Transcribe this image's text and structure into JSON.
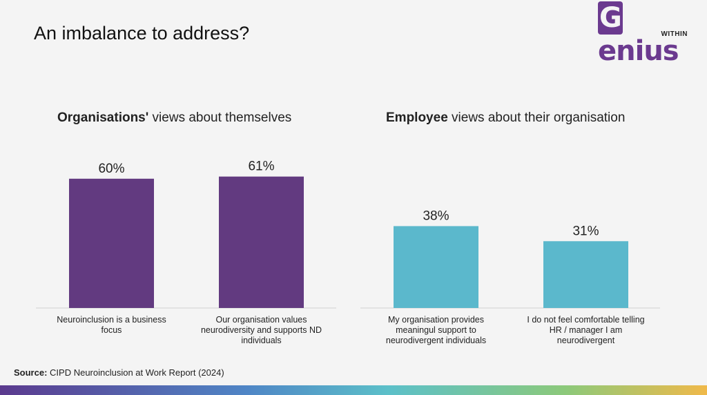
{
  "slide": {
    "title": "An imbalance to address?",
    "logo": {
      "word": "Genius",
      "sub": "WITHIN"
    },
    "source_label": "Source:",
    "source_text": "CIPD Neuroinclusion at Work Report (2024)"
  },
  "colors": {
    "left_bars": "#623a80",
    "right_bars": "#5bb8cc",
    "brand": "#6b3a8f"
  },
  "chart_data": [
    {
      "type": "bar",
      "title_bold": "Organisations'",
      "title_rest": " views about themselves",
      "categories": [
        "Neuroinclusion is a business focus",
        "Our organisation values neurodiversity and supports ND individuals"
      ],
      "values": [
        60,
        61
      ],
      "value_labels": [
        "60%",
        "61%"
      ],
      "ylim": [
        0,
        70
      ],
      "grid": false
    },
    {
      "type": "bar",
      "title_bold": "Employee",
      "title_rest": " views about their organisation",
      "categories": [
        "My organisation provides meaningul support to neurodivergent individuals",
        "I do not feel comfortable telling HR / manager I am neurodivergent"
      ],
      "values": [
        38,
        31
      ],
      "value_labels": [
        "38%",
        "31%"
      ],
      "ylim": [
        0,
        70
      ],
      "grid": false
    }
  ]
}
